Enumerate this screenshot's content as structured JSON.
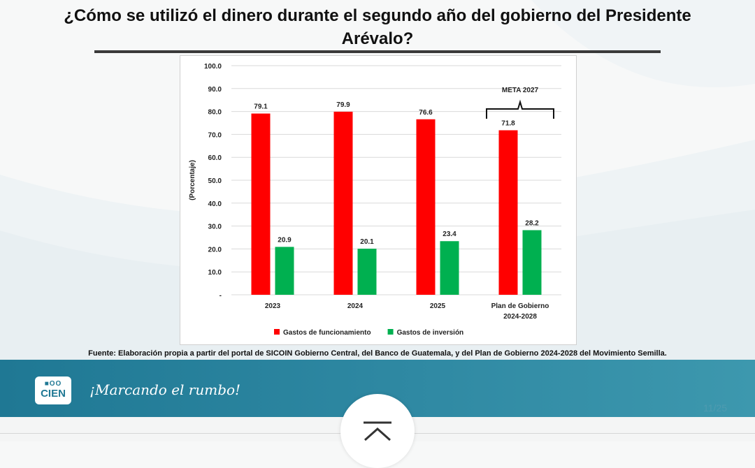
{
  "header": {
    "title": "¿Cómo se utilizó el dinero durante el segundo año del gobierno del Presidente Arévalo?"
  },
  "chart_data": {
    "type": "bar",
    "categories": [
      "2023",
      "2024",
      "2025",
      "Plan de Gobierno 2024-2028"
    ],
    "category_lines": [
      [
        "2023"
      ],
      [
        "2024"
      ],
      [
        "2025"
      ],
      [
        "Plan de Gobierno",
        "2024-2028"
      ]
    ],
    "series": [
      {
        "name": "Gastos de funcionamiento",
        "values": [
          79.1,
          79.9,
          76.6,
          71.8
        ],
        "color": "#ff0000"
      },
      {
        "name": "Gastos de inversión",
        "values": [
          20.9,
          20.1,
          23.4,
          28.2
        ],
        "color": "#00b050"
      }
    ],
    "ylabel": "(Porcentaje)",
    "ylim": [
      0,
      100
    ],
    "y_ticks": [
      {
        "value": 0,
        "label": "-"
      },
      {
        "value": 10,
        "label": "10.0"
      },
      {
        "value": 20,
        "label": "20.0"
      },
      {
        "value": 30,
        "label": "30.0"
      },
      {
        "value": 40,
        "label": "40.0"
      },
      {
        "value": 50,
        "label": "50.0"
      },
      {
        "value": 60,
        "label": "60.0"
      },
      {
        "value": 70,
        "label": "70.0"
      },
      {
        "value": 80,
        "label": "80.0"
      },
      {
        "value": 90,
        "label": "90.0"
      },
      {
        "value": 100,
        "label": "100.0"
      }
    ],
    "grid": true,
    "legend": "bottom",
    "annotation": {
      "text": "META 2027",
      "category_index": 3
    }
  },
  "source": "Fuente: Elaboración propia a partir del portal de SICOIN Gobierno Central, del Banco de Guatemala, y del Plan de Gobierno 2024-2028 del Movimiento Semilla.",
  "footer": {
    "logo_top": "■OO",
    "logo_bottom": "CIEN",
    "slogan": "¡Marcando el rumbo!",
    "page_number": "11/25",
    "band_color": "#1f7894"
  },
  "icons": {
    "scroll_top": "chevron-up-bar-icon"
  }
}
